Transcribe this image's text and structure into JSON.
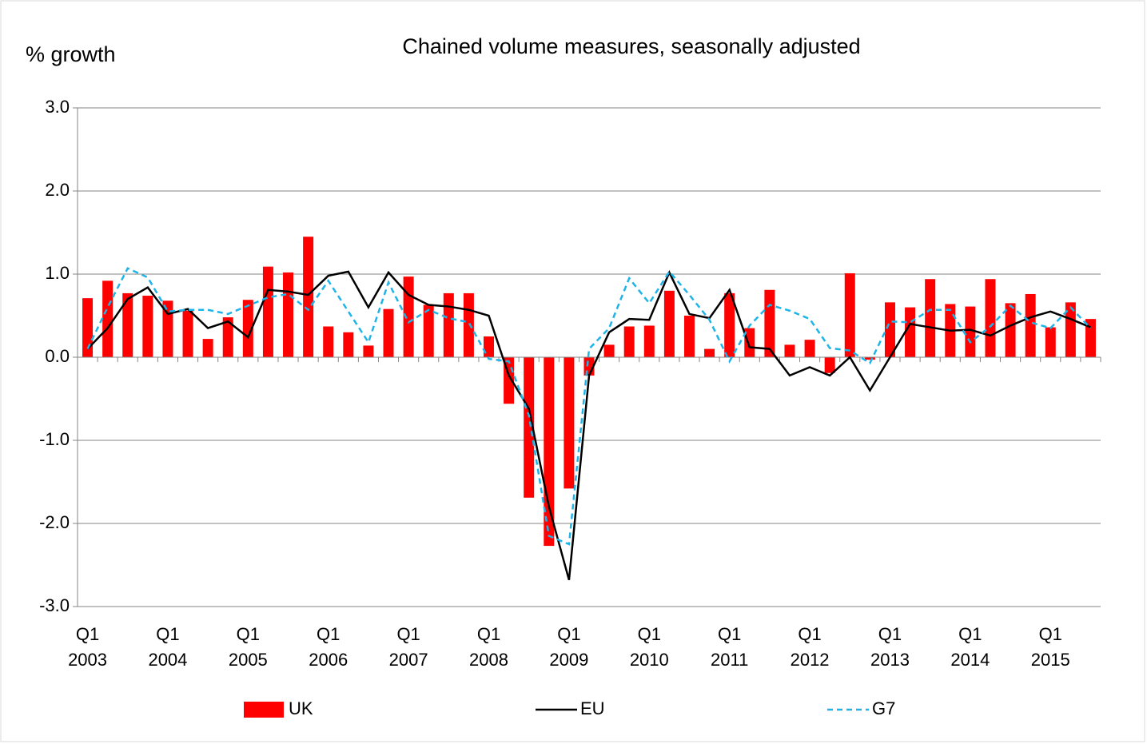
{
  "chart_data": {
    "type": "bar-line",
    "title": "Chained volume measures, seasonally adjusted",
    "y_label": "% growth",
    "categories": [
      "Q1 2003",
      null,
      null,
      null,
      "Q1 2004",
      null,
      null,
      null,
      "Q1 2005",
      null,
      null,
      null,
      "Q1 2006",
      null,
      null,
      null,
      "Q1 2007",
      null,
      null,
      null,
      "Q1 2008",
      null,
      null,
      null,
      "Q1 2009",
      null,
      null,
      null,
      "Q1 2010",
      null,
      null,
      null,
      "Q1 2011",
      null,
      null,
      null,
      "Q1 2012",
      null,
      null,
      null,
      "Q1 2013",
      null,
      null,
      null,
      "Q1 2014",
      null,
      null,
      null,
      "Q1 2015",
      null,
      null
    ],
    "series": [
      {
        "name": "UK",
        "type": "bar",
        "color": "#ff0000",
        "values": [
          0.71,
          0.92,
          0.77,
          0.74,
          0.68,
          0.56,
          0.22,
          0.48,
          0.69,
          1.09,
          1.02,
          1.45,
          0.37,
          0.3,
          0.14,
          0.58,
          0.97,
          0.63,
          0.77,
          0.77,
          0.25,
          -0.56,
          -1.69,
          -2.27,
          -1.58,
          -0.22,
          0.15,
          0.37,
          0.38,
          0.8,
          0.5,
          0.1,
          0.77,
          0.35,
          0.81,
          0.15,
          0.21,
          -0.19,
          1.01,
          -0.03,
          0.66,
          0.6,
          0.94,
          0.64,
          0.61,
          0.94,
          0.65,
          0.76,
          0.36,
          0.66,
          0.46
        ]
      },
      {
        "name": "EU",
        "type": "line",
        "color": "#000000",
        "dash": false,
        "values": [
          0.1,
          0.35,
          0.7,
          0.84,
          0.52,
          0.58,
          0.35,
          0.43,
          0.24,
          0.81,
          0.79,
          0.75,
          0.98,
          1.03,
          0.6,
          1.02,
          0.75,
          0.63,
          0.61,
          0.57,
          0.5,
          -0.22,
          -0.62,
          -1.8,
          -2.68,
          -0.22,
          0.3,
          0.46,
          0.45,
          1.02,
          0.52,
          0.47,
          0.81,
          0.12,
          0.1,
          -0.22,
          -0.12,
          -0.22,
          0.0,
          -0.4,
          0.0,
          0.4,
          0.36,
          0.32,
          0.33,
          0.26,
          0.38,
          0.48,
          0.55,
          0.46,
          0.36
        ]
      },
      {
        "name": "G7",
        "type": "line",
        "color": "#1fb4e8",
        "dash": true,
        "values": [
          0.1,
          0.6,
          1.07,
          0.96,
          0.55,
          0.57,
          0.57,
          0.52,
          0.62,
          0.72,
          0.76,
          0.57,
          0.92,
          0.55,
          0.18,
          0.9,
          0.42,
          0.57,
          0.47,
          0.42,
          -0.02,
          -0.05,
          -0.7,
          -2.15,
          -2.25,
          0.1,
          0.35,
          0.95,
          0.65,
          1.03,
          0.75,
          0.45,
          -0.05,
          0.38,
          0.63,
          0.56,
          0.46,
          0.11,
          0.08,
          -0.07,
          0.43,
          0.42,
          0.57,
          0.57,
          0.18,
          0.37,
          0.62,
          0.42,
          0.35,
          0.6,
          0.35
        ]
      }
    ],
    "ylim": [
      -3,
      3
    ],
    "yticks": [
      {
        "value": -3,
        "label": "-3.0"
      },
      {
        "value": -2,
        "label": "-2.0"
      },
      {
        "value": -1,
        "label": "-1.0"
      },
      {
        "value": 0,
        "label": "0.0"
      },
      {
        "value": 1,
        "label": "1.0"
      },
      {
        "value": 2,
        "label": "2.0"
      },
      {
        "value": 3,
        "label": "3.0"
      }
    ],
    "grid": true,
    "legend": "bottom"
  }
}
